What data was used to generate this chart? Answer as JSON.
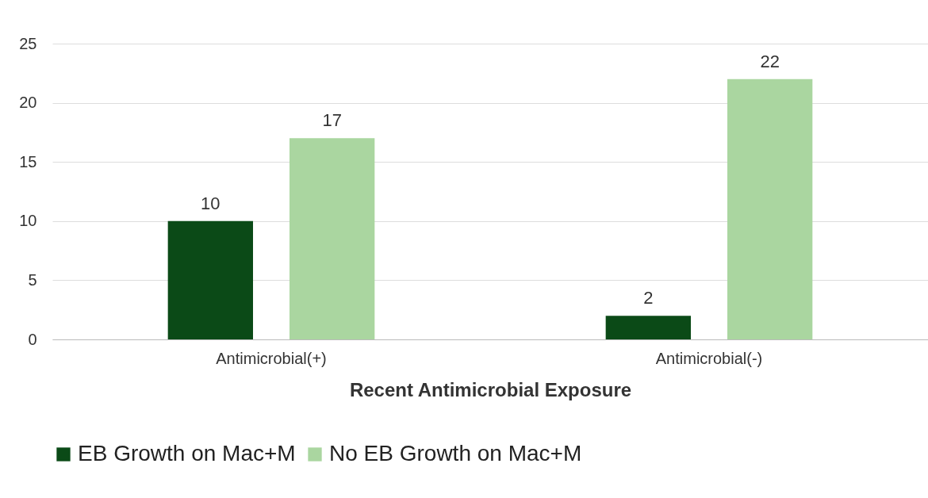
{
  "chart_data": {
    "type": "bar",
    "xlabel": "Recent Antimicrobial Exposure",
    "categories": [
      "Antimicrobial(+)",
      "Antimicrobial(-)"
    ],
    "series": [
      {
        "name": "EB Growth on Mac+M",
        "color": "#0b4a17",
        "values": [
          10,
          2
        ]
      },
      {
        "name": "No EB Growth on Mac+M",
        "color": "#aad6a0",
        "values": [
          17,
          22
        ]
      }
    ],
    "ylim": [
      0,
      25
    ],
    "yticks": [
      0,
      5,
      10,
      15,
      20,
      25
    ],
    "grid": "y",
    "legend": "bottom",
    "data_labels": true
  }
}
